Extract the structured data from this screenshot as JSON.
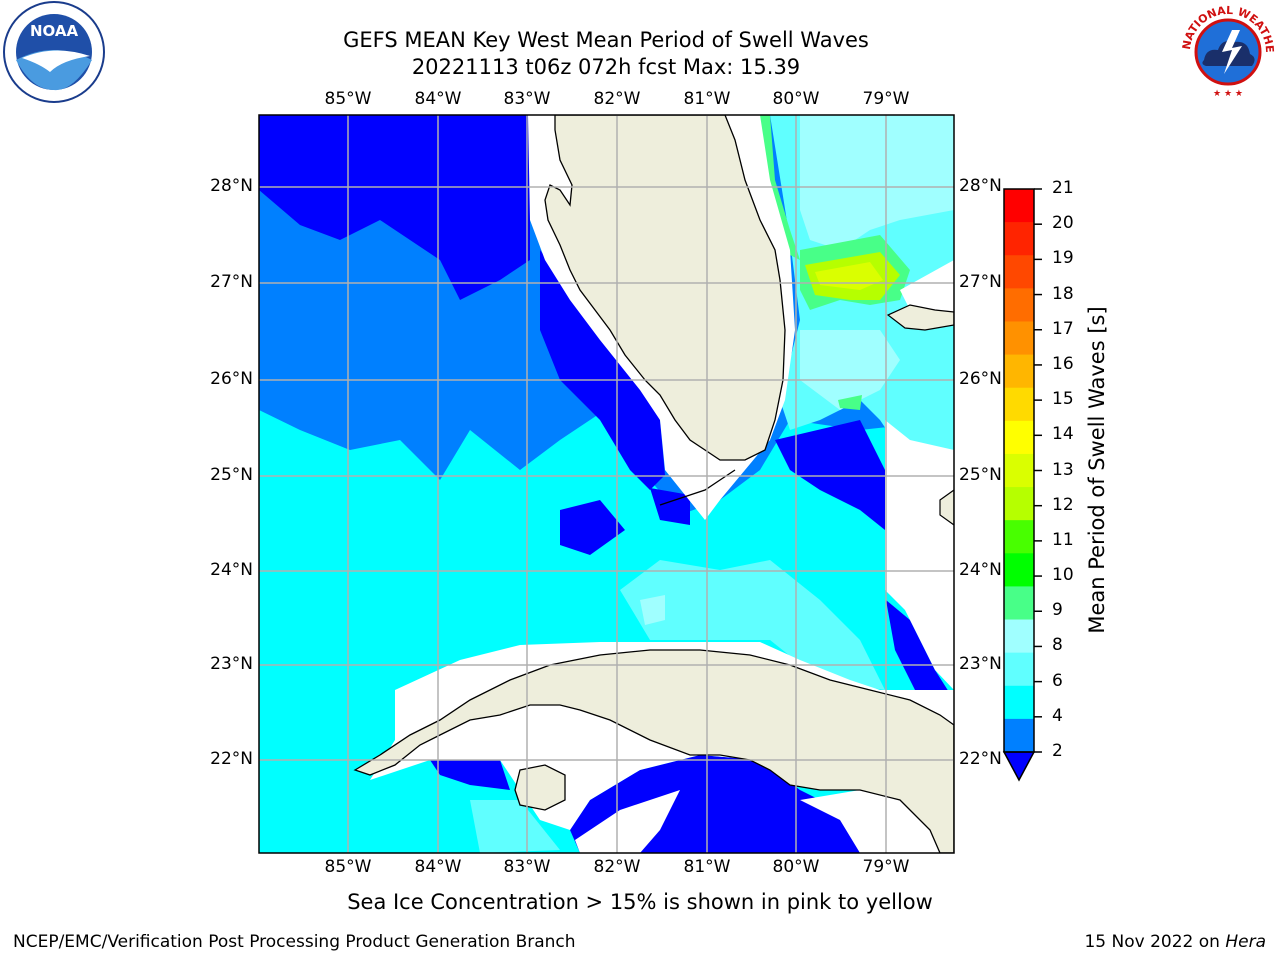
{
  "header": {
    "title_line1": "GEFS MEAN Key West Mean Period of Swell Waves",
    "title_line2": "20221113 t06z 072h fcst   Max: 15.39"
  },
  "logos": {
    "left": {
      "icon": "noaa-logo",
      "text": "NOAA"
    },
    "right": {
      "icon": "nws-logo",
      "text": "NATIONAL WEATHER SERVICE"
    }
  },
  "map": {
    "lon_labels": [
      "85°W",
      "84°W",
      "83°W",
      "82°W",
      "81°W",
      "80°W",
      "79°W"
    ],
    "lat_labels": [
      "28°N",
      "27°N",
      "26°N",
      "25°N",
      "24°N",
      "23°N",
      "22°N"
    ],
    "extent": {
      "lon_min": -86.0,
      "lon_max": -78.3,
      "lat_min": 21.0,
      "lat_max": 28.75
    },
    "land_color": "#eeeedc",
    "grid_color": "#b0b0b0"
  },
  "colorbar": {
    "label": "Mean Period of Swell Waves [s]",
    "ticks": [
      "21",
      "20",
      "19",
      "18",
      "17",
      "16",
      "15",
      "14",
      "13",
      "12",
      "11",
      "10",
      "9",
      "8",
      "6",
      "4",
      "2"
    ],
    "colors": [
      "#ff0000",
      "#ff2400",
      "#ff4800",
      "#ff6d00",
      "#ff9100",
      "#ffb600",
      "#ffda00",
      "#ffff00",
      "#daff00",
      "#b6ff00",
      "#48ff00",
      "#00ff00",
      "#48ff88",
      "#a0ffff",
      "#60ffff",
      "#00ffff",
      "#0080ff"
    ],
    "under_color": "#0000ff"
  },
  "note": "Sea Ice Concentration > 15% is shown in pink to yellow",
  "footer": {
    "left": "NCEP/EMC/Verification Post Processing Product Generation Branch",
    "right_date": "15 Nov 2022 on ",
    "right_host": "Hera"
  }
}
